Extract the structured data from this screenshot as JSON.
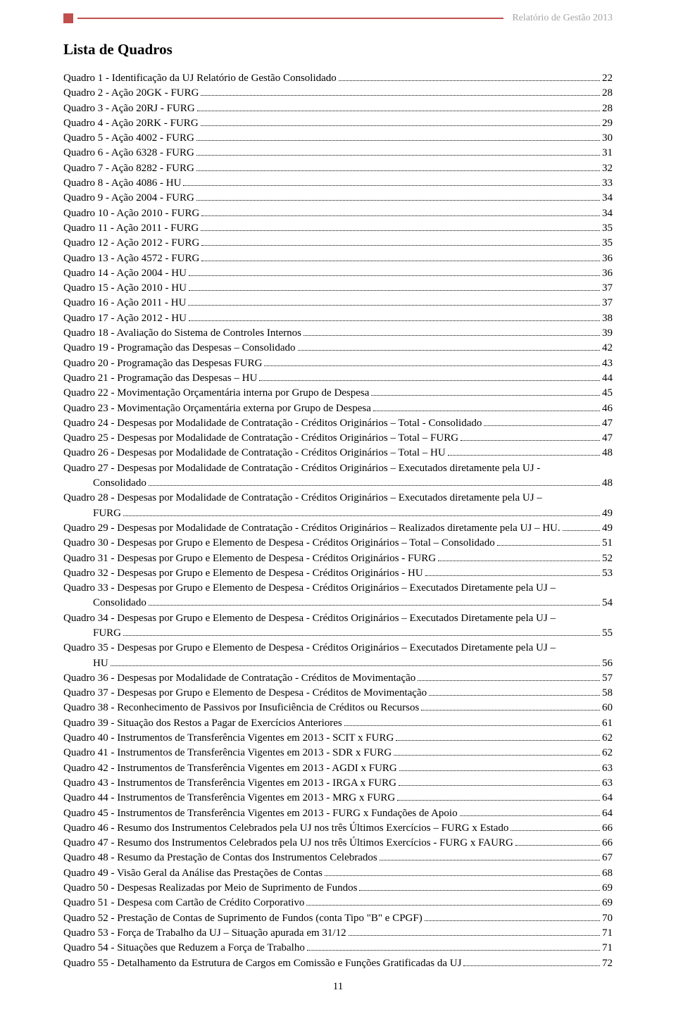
{
  "header": "Relatório de Gestão 2013",
  "title": "Lista de Quadros",
  "page_number": "11",
  "entries": [
    {
      "text": "Quadro 1 - Identificação da UJ Relatório de Gestão Consolidado",
      "page": "22",
      "indent": 0
    },
    {
      "text": "Quadro 2 - Ação 20GK - FURG",
      "page": "28",
      "indent": 0
    },
    {
      "text": "Quadro 3 - Ação 20RJ - FURG",
      "page": "28",
      "indent": 0
    },
    {
      "text": "Quadro 4 - Ação 20RK - FURG",
      "page": "29",
      "indent": 0
    },
    {
      "text": "Quadro 5 - Ação 4002 - FURG",
      "page": "30",
      "indent": 0
    },
    {
      "text": "Quadro 6 - Ação 6328 - FURG",
      "page": "31",
      "indent": 0
    },
    {
      "text": "Quadro 7 - Ação 8282 - FURG",
      "page": "32",
      "indent": 0
    },
    {
      "text": "Quadro 8 - Ação 4086 - HU",
      "page": "33",
      "indent": 0
    },
    {
      "text": "Quadro 9 - Ação 2004 - FURG",
      "page": "34",
      "indent": 0
    },
    {
      "text": "Quadro 10 - Ação 2010 - FURG",
      "page": "34",
      "indent": 0
    },
    {
      "text": "Quadro 11 - Ação 2011 - FURG",
      "page": "35",
      "indent": 0
    },
    {
      "text": "Quadro 12 - Ação 2012 - FURG",
      "page": "35",
      "indent": 0
    },
    {
      "text": "Quadro 13 - Ação 4572 - FURG",
      "page": "36",
      "indent": 0
    },
    {
      "text": "Quadro 14 - Ação 2004 - HU",
      "page": "36",
      "indent": 0
    },
    {
      "text": "Quadro 15 - Ação 2010 - HU",
      "page": "37",
      "indent": 0
    },
    {
      "text": "Quadro 16 - Ação 2011 - HU",
      "page": "37",
      "indent": 0
    },
    {
      "text": "Quadro 17 - Ação 2012 - HU",
      "page": "38",
      "indent": 0
    },
    {
      "text": "Quadro 18 - Avaliação do Sistema de Controles Internos",
      "page": "39",
      "indent": 0
    },
    {
      "text": "Quadro 19 - Programação das Despesas – Consolidado",
      "page": "42",
      "indent": 0
    },
    {
      "text": "Quadro 20 - Programação das Despesas FURG",
      "page": "43",
      "indent": 0
    },
    {
      "text": "Quadro 21 - Programação das Despesas – HU",
      "page": "44",
      "indent": 0
    },
    {
      "text": "Quadro 22 - Movimentação Orçamentária interna por Grupo de Despesa",
      "page": "45",
      "indent": 0
    },
    {
      "text": "Quadro 23 - Movimentação Orçamentária externa por Grupo de Despesa",
      "page": "46",
      "indent": 0
    },
    {
      "text": "Quadro 24 - Despesas por Modalidade de Contratação - Créditos Originários – Total - Consolidado",
      "page": "47",
      "indent": 0
    },
    {
      "text": "Quadro 25 - Despesas por Modalidade de Contratação - Créditos Originários – Total – FURG",
      "page": "47",
      "indent": 0
    },
    {
      "text": "Quadro 26 - Despesas por Modalidade de Contratação - Créditos Originários – Total – HU",
      "page": "48",
      "indent": 0
    },
    {
      "text": "Quadro 27 - Despesas por Modalidade de Contratação - Créditos Originários – Executados diretamente pela UJ -",
      "page": "",
      "indent": 0,
      "nodots": true
    },
    {
      "text": "Consolidado",
      "page": "48",
      "indent": 1
    },
    {
      "text": "Quadro 28 - Despesas por Modalidade de Contratação - Créditos Originários – Executados diretamente pela UJ –",
      "page": "",
      "indent": 0,
      "nodots": true
    },
    {
      "text": "FURG",
      "page": "49",
      "indent": 1
    },
    {
      "text": "Quadro 29 - Despesas por Modalidade de Contratação - Créditos Originários – Realizados diretamente pela UJ – HU.",
      "page": "49",
      "indent": 0,
      "tight": true
    },
    {
      "text": "Quadro 30 - Despesas por Grupo e Elemento de Despesa - Créditos Originários – Total – Consolidado",
      "page": "51",
      "indent": 0
    },
    {
      "text": "Quadro 31 - Despesas por Grupo e Elemento de Despesa - Créditos Originários - FURG",
      "page": "52",
      "indent": 0
    },
    {
      "text": "Quadro 32 - Despesas por Grupo e Elemento de Despesa - Créditos Originários - HU",
      "page": "53",
      "indent": 0
    },
    {
      "text": "Quadro 33 - Despesas por Grupo e Elemento de Despesa - Créditos Originários – Executados Diretamente pela UJ –",
      "page": "",
      "indent": 0,
      "nodots": true
    },
    {
      "text": "Consolidado",
      "page": "54",
      "indent": 1
    },
    {
      "text": "Quadro 34 - Despesas por Grupo e Elemento de Despesa - Créditos Originários – Executados Diretamente pela UJ –",
      "page": "",
      "indent": 0,
      "nodots": true
    },
    {
      "text": "FURG",
      "page": "55",
      "indent": 1
    },
    {
      "text": "Quadro 35 - Despesas por Grupo e Elemento de Despesa - Créditos Originários – Executados Diretamente pela UJ –",
      "page": "",
      "indent": 0,
      "nodots": true
    },
    {
      "text": "HU",
      "page": "56",
      "indent": 1
    },
    {
      "text": "Quadro 36 - Despesas por Modalidade de Contratação - Créditos de Movimentação",
      "page": "57",
      "indent": 0
    },
    {
      "text": "Quadro 37 - Despesas por Grupo e Elemento de Despesa - Créditos de Movimentação",
      "page": "58",
      "indent": 0
    },
    {
      "text": "Quadro 38 - Reconhecimento de Passivos por Insuficiência de Créditos ou Recursos",
      "page": "60",
      "indent": 0
    },
    {
      "text": "Quadro 39 - Situação dos Restos a Pagar de Exercícios Anteriores",
      "page": "61",
      "indent": 0
    },
    {
      "text": "Quadro 40 - Instrumentos de Transferência Vigentes em 2013 - SCIT x FURG",
      "page": "62",
      "indent": 0
    },
    {
      "text": "Quadro 41 - Instrumentos de Transferência Vigentes em 2013 - SDR x FURG",
      "page": "62",
      "indent": 0
    },
    {
      "text": "Quadro 42 - Instrumentos de Transferência Vigentes em 2013 - AGDI x FURG",
      "page": "63",
      "indent": 0
    },
    {
      "text": "Quadro 43 - Instrumentos de Transferência Vigentes em 2013 - IRGA x FURG",
      "page": "63",
      "indent": 0
    },
    {
      "text": "Quadro 44 - Instrumentos de Transferência Vigentes em 2013 - MRG x FURG",
      "page": "64",
      "indent": 0
    },
    {
      "text": "Quadro 45 - Instrumentos de Transferência Vigentes em 2013 - FURG x Fundações de Apoio",
      "page": "64",
      "indent": 0
    },
    {
      "text": "Quadro 46 - Resumo dos Instrumentos Celebrados pela UJ nos três Últimos Exercícios – FURG x Estado",
      "page": "66",
      "indent": 0
    },
    {
      "text": "Quadro 47 - Resumo dos Instrumentos Celebrados pela UJ nos três Últimos Exercícios - FURG x FAURG",
      "page": "66",
      "indent": 0
    },
    {
      "text": "Quadro 48 - Resumo da Prestação de Contas dos Instrumentos Celebrados",
      "page": "67",
      "indent": 0
    },
    {
      "text": "Quadro 49 - Visão Geral da Análise das Prestações de Contas",
      "page": "68",
      "indent": 0
    },
    {
      "text": "Quadro 50 - Despesas Realizadas por Meio de Suprimento de Fundos",
      "page": "69",
      "indent": 0
    },
    {
      "text": "Quadro 51 - Despesa com Cartão de Crédito Corporativo",
      "page": "69",
      "indent": 0
    },
    {
      "text": "Quadro 52 - Prestação de Contas de Suprimento de Fundos (conta Tipo \"B\" e CPGF)",
      "page": "70",
      "indent": 0
    },
    {
      "text": "Quadro 53 - Força de Trabalho da UJ – Situação apurada em 31/12",
      "page": "71",
      "indent": 0
    },
    {
      "text": "Quadro 54 - Situações que Reduzem a Força de Trabalho",
      "page": "71",
      "indent": 0
    },
    {
      "text": "Quadro 55 - Detalhamento da Estrutura de Cargos em Comissão e Funções Gratificadas da UJ",
      "page": "72",
      "indent": 0
    }
  ]
}
